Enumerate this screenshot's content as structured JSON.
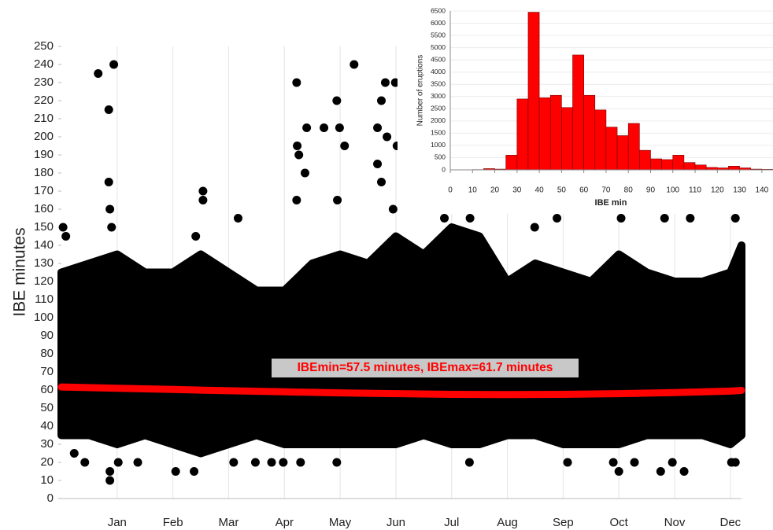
{
  "chart_data": [
    {
      "type": "scatter",
      "ylabel": "IBE minutes",
      "xlim": [
        0,
        12.2
      ],
      "xticks": [
        {
          "value": 1,
          "label": "Jan"
        },
        {
          "value": 2,
          "label": "Feb"
        },
        {
          "value": 3,
          "label": "Mar"
        },
        {
          "value": 4,
          "label": "Apr"
        },
        {
          "value": 5,
          "label": "May"
        },
        {
          "value": 6,
          "label": "Jun"
        },
        {
          "value": 7,
          "label": "Jul"
        },
        {
          "value": 8,
          "label": "Aug"
        },
        {
          "value": 9,
          "label": "Sep"
        },
        {
          "value": 10,
          "label": "Oct"
        },
        {
          "value": 11,
          "label": "Nov"
        },
        {
          "value": 12,
          "label": "Dec"
        }
      ],
      "ylim": [
        0,
        250
      ],
      "yticks": [
        0,
        10,
        20,
        30,
        40,
        50,
        60,
        70,
        80,
        90,
        100,
        110,
        120,
        130,
        140,
        150,
        160,
        170,
        180,
        190,
        200,
        210,
        220,
        230,
        240,
        250
      ],
      "color": "#000000",
      "points": {
        "x": [
          0.03,
          0.08,
          0.66,
          0.94,
          0.85,
          0.85,
          0.87,
          0.9,
          2.54,
          2.54,
          2.41,
          3.17,
          4.22,
          4.4,
          4.23,
          4.26,
          4.22,
          4.37,
          4.71,
          4.94,
          4.99,
          5.08,
          5.25,
          4.95,
          5.67,
          5.74,
          5.67,
          5.74,
          5.81,
          5.99,
          5.84,
          6.02,
          5.95,
          0.23,
          0.42,
          0.87,
          0.87,
          1.02,
          1.37,
          2.05,
          2.38,
          3.09,
          3.48,
          3.77,
          3.98,
          4.29,
          4.94,
          7.32,
          9.08,
          9.9,
          10.0,
          10.28,
          10.75,
          11.17,
          10.96,
          12.02,
          12.09,
          8.89,
          10.04,
          10.82,
          11.28,
          12.09,
          8.49,
          6.87,
          7.33
        ],
        "y": [
          150,
          145,
          235,
          240,
          215,
          175,
          160,
          150,
          170,
          165,
          145,
          155,
          230,
          205,
          195,
          190,
          165,
          180,
          205,
          220,
          205,
          195,
          240,
          165,
          205,
          220,
          185,
          175,
          230,
          230,
          200,
          195,
          160,
          25,
          20,
          10,
          15,
          20,
          20,
          15,
          15,
          20,
          20,
          20,
          20,
          20,
          20,
          20,
          20,
          20,
          15,
          20,
          15,
          15,
          20,
          20,
          20,
          155,
          155,
          155,
          155,
          155,
          150,
          155,
          155
        ]
      },
      "band": {
        "x": [
          0,
          0.5,
          1,
          1.5,
          2,
          2.5,
          3,
          3.5,
          4,
          4.5,
          5,
          5.5,
          6,
          6.5,
          7,
          7.5,
          8,
          8.5,
          9,
          9.5,
          10,
          10.5,
          11,
          11.5,
          12,
          12.2
        ],
        "upper": [
          125,
          130,
          135,
          125,
          125,
          135,
          125,
          115,
          115,
          130,
          135,
          130,
          145,
          135,
          150,
          145,
          120,
          130,
          125,
          120,
          135,
          125,
          120,
          120,
          125,
          140
        ],
        "lower": [
          35,
          35,
          30,
          35,
          30,
          25,
          30,
          35,
          30,
          30,
          30,
          30,
          30,
          35,
          30,
          30,
          35,
          35,
          30,
          30,
          30,
          35,
          35,
          35,
          30,
          35
        ]
      },
      "trend": {
        "color": "#ff0000",
        "x": [
          0,
          1,
          2,
          3,
          4,
          5,
          6,
          7,
          8,
          9,
          10,
          11,
          12,
          12.2
        ],
        "values": [
          61.7,
          61.0,
          60.3,
          59.6,
          59.0,
          58.4,
          58.0,
          57.6,
          57.5,
          57.6,
          58.0,
          58.6,
          59.4,
          59.8
        ]
      },
      "annotation": "IBEmin=57.5 minutes, IBEmax=61.7 minutes"
    },
    {
      "type": "histogram",
      "xlabel": "IBE min",
      "ylabel": "Number of eruptions",
      "color": "#ff0000",
      "bins": [
        0,
        5,
        10,
        15,
        20,
        25,
        30,
        35,
        40,
        45,
        50,
        55,
        60,
        65,
        70,
        75,
        80,
        85,
        90,
        95,
        100,
        105,
        110,
        115,
        120,
        125,
        130,
        135,
        140,
        145
      ],
      "counts": [
        0,
        0,
        10,
        50,
        30,
        600,
        2900,
        6450,
        2950,
        3050,
        2550,
        4700,
        3050,
        2450,
        1750,
        1400,
        1900,
        800,
        450,
        420,
        600,
        300,
        200,
        100,
        80,
        150,
        80,
        30,
        20
      ],
      "xlim": [
        0,
        145
      ],
      "xticks": [
        0,
        10,
        20,
        30,
        40,
        50,
        60,
        70,
        80,
        90,
        100,
        110,
        120,
        130,
        140
      ],
      "ylim": [
        0,
        6500
      ],
      "yticks": [
        0,
        500,
        1000,
        1500,
        2000,
        2500,
        3000,
        3500,
        4000,
        4500,
        5000,
        5500,
        6000,
        6500
      ]
    }
  ]
}
